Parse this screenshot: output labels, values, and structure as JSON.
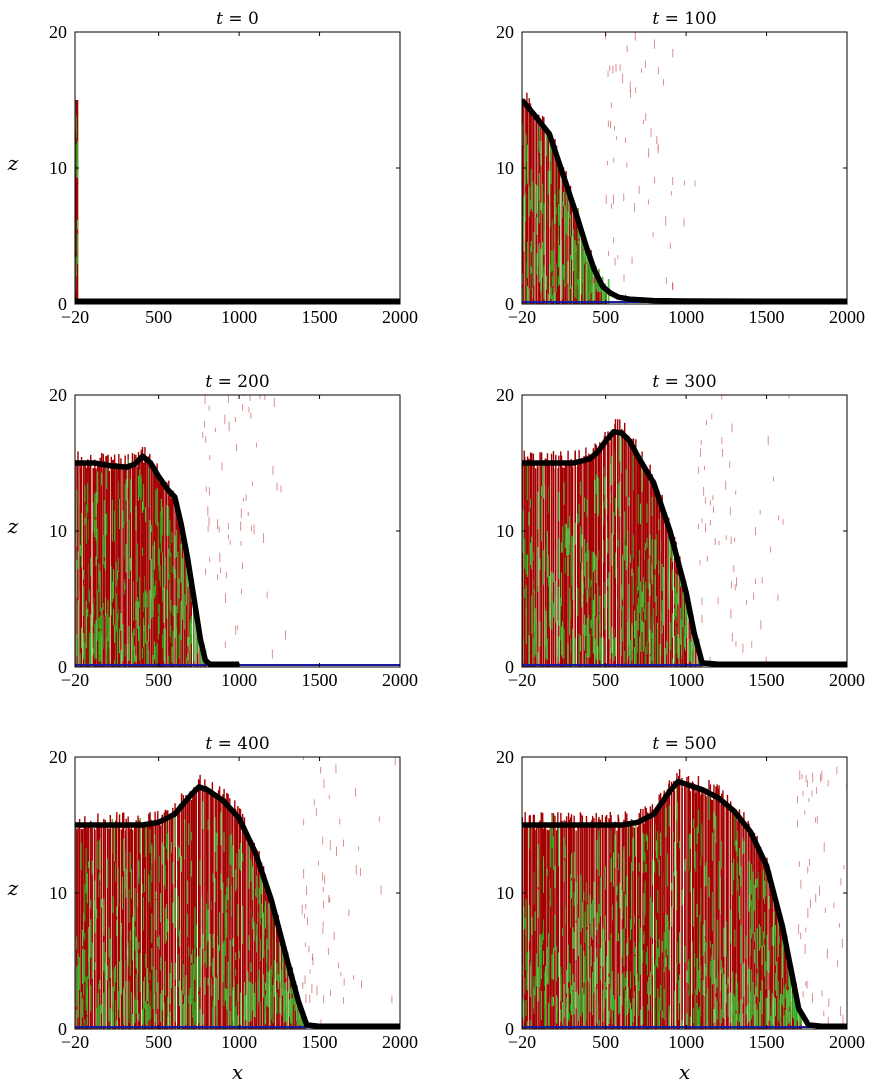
{
  "chart_data": [
    {
      "type": "scatter",
      "title": "t = 0",
      "xlabel": "",
      "ylabel": "z",
      "xticks": [
        "−20",
        "500",
        "1000",
        "1500",
        "2000"
      ],
      "yticks": [
        "0",
        "10",
        "20"
      ],
      "xlim": [
        -20,
        2000
      ],
      "ylim": [
        0,
        20
      ],
      "front_height": 15,
      "front_x": 0,
      "surface_curve": {
        "x": [
          -20,
          2000
        ],
        "z": [
          0.2,
          0.2
        ]
      }
    },
    {
      "type": "scatter",
      "title": "t = 100",
      "xlabel": "",
      "ylabel": "",
      "xticks": [
        "−20",
        "500",
        "1000",
        "1500",
        "2000"
      ],
      "yticks": [
        "0",
        "10",
        "20"
      ],
      "xlim": [
        -20,
        2000
      ],
      "ylim": [
        0,
        20
      ],
      "front_height": 15,
      "front_x": 520,
      "surface_curve": {
        "x": [
          -20,
          50,
          150,
          250,
          320,
          380,
          430,
          480,
          530,
          580,
          650,
          800,
          1000,
          1500,
          2000
        ],
        "z": [
          15,
          14,
          12.5,
          9,
          6.5,
          4.2,
          2.5,
          1.3,
          0.8,
          0.5,
          0.35,
          0.25,
          0.22,
          0.2,
          0.2
        ]
      }
    },
    {
      "type": "scatter",
      "title": "t = 200",
      "xlabel": "",
      "ylabel": "z",
      "xticks": [
        "−20",
        "500",
        "1000",
        "1500",
        "2000"
      ],
      "yticks": [
        "0",
        "10",
        "20"
      ],
      "xlim": [
        -20,
        2000
      ],
      "ylim": [
        0,
        20
      ],
      "front_height": 16.5,
      "front_x": 800,
      "surface_curve": {
        "x": [
          -20,
          100,
          200,
          300,
          350,
          400,
          450,
          500,
          560,
          600,
          640,
          680,
          720,
          760,
          790,
          820,
          900,
          1000
        ],
        "z": [
          15,
          15,
          14.8,
          14.7,
          14.9,
          15.5,
          15.0,
          14.0,
          13.0,
          12.5,
          10.5,
          8,
          5,
          2,
          0.5,
          0.2,
          0.2,
          0.2
        ]
      }
    },
    {
      "type": "scatter",
      "title": "t = 300",
      "xlabel": "",
      "ylabel": "",
      "xticks": [
        "−20",
        "500",
        "1000",
        "1500",
        "2000"
      ],
      "yticks": [
        "0",
        "10",
        "20"
      ],
      "xlim": [
        -20,
        2000
      ],
      "ylim": [
        0,
        20
      ],
      "front_height": 17,
      "front_x": 1100,
      "surface_curve": {
        "x": [
          -20,
          100,
          200,
          300,
          400,
          450,
          500,
          550,
          600,
          650,
          700,
          800,
          900,
          1000,
          1050,
          1100,
          1200,
          1500,
          2000
        ],
        "z": [
          15,
          15,
          15,
          15,
          15.3,
          15.8,
          16.6,
          17.3,
          17.2,
          16.6,
          15.5,
          13.5,
          10,
          5.5,
          2.5,
          0.3,
          0.2,
          0.2,
          0.2
        ]
      }
    },
    {
      "type": "scatter",
      "title": "t = 400",
      "xlabel": "x",
      "ylabel": "z",
      "xticks": [
        "−20",
        "500",
        "1000",
        "1500",
        "2000"
      ],
      "yticks": [
        "0",
        "10",
        "20"
      ],
      "xlim": [
        -20,
        2000
      ],
      "ylim": [
        0,
        20
      ],
      "front_height": 17,
      "front_x": 1420,
      "surface_curve": {
        "x": [
          -20,
          100,
          200,
          300,
          400,
          500,
          600,
          700,
          750,
          800,
          900,
          1000,
          1100,
          1200,
          1300,
          1370,
          1420,
          1500,
          2000
        ],
        "z": [
          15,
          15,
          15,
          15,
          15,
          15.2,
          15.8,
          17.2,
          17.8,
          17.6,
          16.8,
          15.5,
          13,
          9.5,
          5,
          2,
          0.3,
          0.2,
          0.2
        ]
      }
    },
    {
      "type": "scatter",
      "title": "t = 500",
      "xlabel": "x",
      "ylabel": "",
      "xticks": [
        "−20",
        "500",
        "1000",
        "1500",
        "2000"
      ],
      "yticks": [
        "0",
        "10",
        "20"
      ],
      "xlim": [
        -20,
        2000
      ],
      "ylim": [
        0,
        20
      ],
      "front_height": 17,
      "front_x": 1720,
      "surface_curve": {
        "x": [
          -20,
          200,
          400,
          600,
          700,
          800,
          900,
          950,
          1000,
          1100,
          1200,
          1300,
          1400,
          1500,
          1600,
          1650,
          1700,
          1760,
          1850,
          2000
        ],
        "z": [
          15,
          15,
          15,
          15,
          15.2,
          15.8,
          17.5,
          18.2,
          18.0,
          17.6,
          17,
          16,
          14.5,
          12,
          7.5,
          4.5,
          1.5,
          0.3,
          0.2,
          0.2
        ]
      }
    }
  ]
}
